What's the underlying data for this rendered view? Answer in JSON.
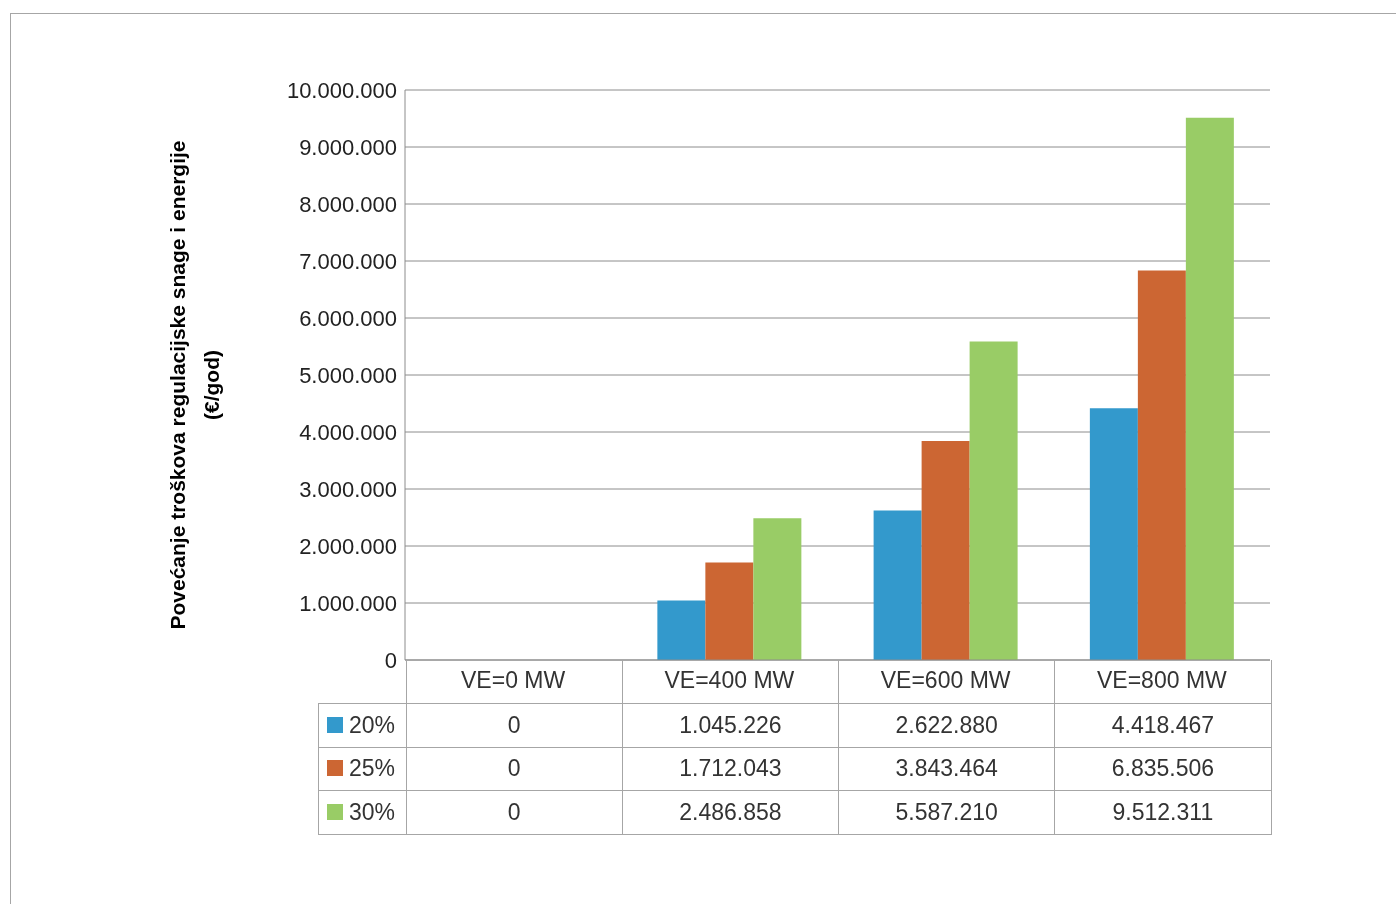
{
  "chart_data": {
    "type": "bar",
    "ylabel": "Povećanje troškova regulacijske snage i energije\n(€/god)",
    "categories": [
      "VE=0 MW",
      "VE=400 MW",
      "VE=600 MW",
      "VE=800 MW"
    ],
    "series": [
      {
        "name": "20%",
        "color": "#3399cc",
        "values": [
          0,
          1045226,
          2622880,
          4418467
        ],
        "value_labels": [
          "0",
          "1.045.226",
          "2.622.880",
          "4.418.467"
        ]
      },
      {
        "name": "25%",
        "color": "#cc6633",
        "values": [
          0,
          1712043,
          3843464,
          6835506
        ],
        "value_labels": [
          "0",
          "1.712.043",
          "3.843.464",
          "6.835.506"
        ]
      },
      {
        "name": "30%",
        "color": "#99cc66",
        "values": [
          0,
          2486858,
          5587210,
          9512311
        ],
        "value_labels": [
          "0",
          "2.486.858",
          "5.587.210",
          "9.512.311"
        ]
      }
    ],
    "ylim": [
      0,
      10000000
    ],
    "yticks": [
      {
        "value": 0,
        "label": "0"
      },
      {
        "value": 1000000,
        "label": "1.000.000"
      },
      {
        "value": 2000000,
        "label": "2.000.000"
      },
      {
        "value": 3000000,
        "label": "3.000.000"
      },
      {
        "value": 4000000,
        "label": "4.000.000"
      },
      {
        "value": 5000000,
        "label": "5.000.000"
      },
      {
        "value": 6000000,
        "label": "6.000.000"
      },
      {
        "value": 7000000,
        "label": "7.000.000"
      },
      {
        "value": 8000000,
        "label": "8.000.000"
      },
      {
        "value": 9000000,
        "label": "9.000.000"
      },
      {
        "value": 10000000,
        "label": "10.000.000"
      }
    ],
    "grid": "y",
    "legend": "bottom"
  }
}
